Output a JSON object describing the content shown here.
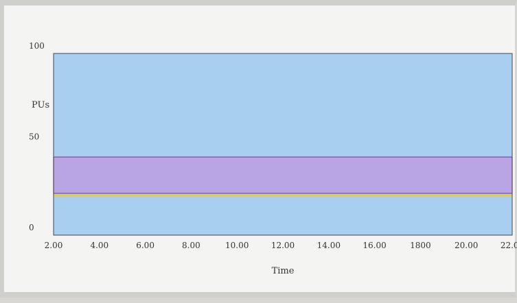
{
  "chart_data": {
    "type": "area",
    "title": "",
    "xlabel": "Time",
    "ylabel": "PUs",
    "xlim": [
      2,
      22
    ],
    "ylim": [
      0,
      100
    ],
    "x_ticks": [
      "2.00",
      "4.00",
      "6.00",
      "8.00",
      "10.00",
      "12.00",
      "14.00",
      "16.00",
      "1800",
      "20.00",
      "22.00"
    ],
    "y_ticks": [
      "100",
      "50",
      "0"
    ],
    "grid": false,
    "legend": "none",
    "series": [
      {
        "band_low": 23,
        "band_high": 43
      },
      {
        "value": 22
      }
    ],
    "colors": {
      "plot_background": "#a9cff0",
      "band_fill": "#b9a4e4",
      "band_edge": "#7a4aa6",
      "line": "#f1cc22",
      "axis": "#444444"
    }
  }
}
